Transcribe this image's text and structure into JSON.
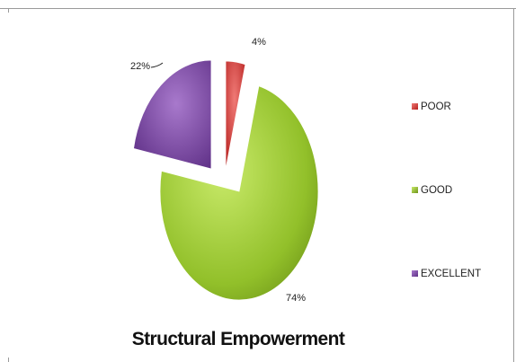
{
  "chart_data": {
    "type": "pie",
    "title": "Structural Empowerment",
    "categories": [
      "POOR",
      "GOOD",
      "EXCELLENT"
    ],
    "values": [
      4,
      74,
      22
    ],
    "data_labels": [
      "4%",
      "74%",
      "22%"
    ],
    "colors": [
      "#d9302e",
      "#92c02a",
      "#7e45a8"
    ],
    "exploded": true,
    "style": "3d-shaded",
    "legend": {
      "position": "right",
      "entries": [
        "POOR",
        "GOOD",
        "EXCELLENT"
      ]
    }
  }
}
